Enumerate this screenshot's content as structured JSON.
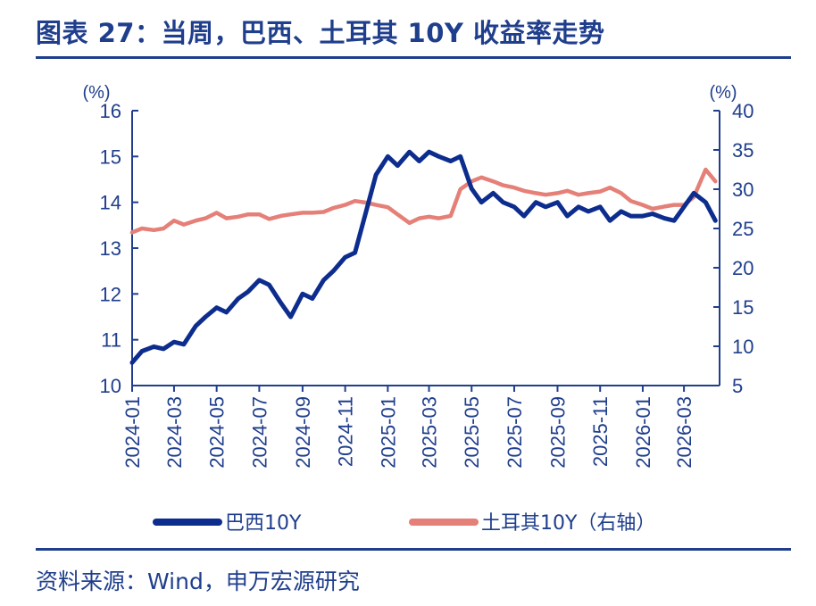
{
  "header": {
    "title": "图表 27：当周，巴西、土耳其 10Y 收益率走势"
  },
  "footer": {
    "source": "资料来源：Wind，申万宏源研究"
  },
  "colors": {
    "brand": "#1f3e8c",
    "brazil": "#0d2d8e",
    "turkey": "#e58078"
  },
  "chart_data": {
    "type": "line",
    "left_axis": {
      "unit": "(%)",
      "range": [
        10,
        16
      ],
      "ticks": [
        "10",
        "11",
        "12",
        "13",
        "14",
        "15",
        "16"
      ]
    },
    "right_axis": {
      "unit": "(%)",
      "range": [
        5,
        40
      ],
      "ticks": [
        "5",
        "10",
        "15",
        "20",
        "25",
        "30",
        "35",
        "40"
      ]
    },
    "x_axis": {
      "ticks": [
        "2024-01",
        "2024-03",
        "2024-05",
        "2024-07",
        "2024-09",
        "2024-11",
        "2025-01",
        "2025-03",
        "2025-05",
        "2025-07",
        "2025-09",
        "2025-11",
        "2026-01",
        "2026-03"
      ]
    },
    "legend_position": "bottom",
    "grid": false,
    "series": [
      {
        "name": "巴西10Y",
        "axis": "left",
        "color": "#0d2d8e",
        "x": [
          "2024-01-01",
          "2024-01-15",
          "2024-02-01",
          "2024-02-15",
          "2024-03-01",
          "2024-03-15",
          "2024-04-01",
          "2024-04-15",
          "2024-05-01",
          "2024-05-15",
          "2024-06-01",
          "2024-06-15",
          "2024-07-01",
          "2024-07-15",
          "2024-08-01",
          "2024-08-15",
          "2024-09-01",
          "2024-09-15",
          "2024-10-01",
          "2024-10-15",
          "2024-11-01",
          "2024-11-15",
          "2024-12-01",
          "2024-12-15",
          "2025-01-01",
          "2025-01-15",
          "2025-02-01",
          "2025-02-15",
          "2025-03-01",
          "2025-03-15",
          "2025-04-01",
          "2025-04-15",
          "2025-05-01",
          "2025-05-15",
          "2025-06-01",
          "2025-06-15",
          "2025-07-01",
          "2025-07-15",
          "2025-08-01",
          "2025-08-15",
          "2025-09-01",
          "2025-09-15",
          "2025-10-01",
          "2025-10-15",
          "2025-11-01",
          "2025-11-15",
          "2025-12-01",
          "2025-12-15",
          "2026-01-01",
          "2026-01-15",
          "2026-02-01",
          "2026-02-15",
          "2026-03-01",
          "2026-03-15",
          "2026-04-01",
          "2026-04-15"
        ],
        "values": [
          10.5,
          10.75,
          10.85,
          10.8,
          10.95,
          10.9,
          11.3,
          11.5,
          11.7,
          11.6,
          11.9,
          12.05,
          12.3,
          12.2,
          11.8,
          11.5,
          12.0,
          11.9,
          12.3,
          12.5,
          12.8,
          12.9,
          13.8,
          14.6,
          15.0,
          14.8,
          15.1,
          14.9,
          15.1,
          15.0,
          14.9,
          15.0,
          14.3,
          14.0,
          14.2,
          14.0,
          13.9,
          13.7,
          14.0,
          13.9,
          14.0,
          13.7,
          13.9,
          13.8,
          13.9,
          13.6,
          13.8,
          13.7,
          13.7,
          13.75,
          13.65,
          13.6,
          13.9,
          14.2,
          14.0,
          13.6
        ]
      },
      {
        "name": "土耳其10Y（右轴）",
        "axis": "right",
        "color": "#e58078",
        "x": [
          "2024-01-01",
          "2024-01-15",
          "2024-02-01",
          "2024-02-15",
          "2024-03-01",
          "2024-03-15",
          "2024-04-01",
          "2024-04-15",
          "2024-05-01",
          "2024-05-15",
          "2024-06-01",
          "2024-06-15",
          "2024-07-01",
          "2024-07-15",
          "2024-08-01",
          "2024-08-15",
          "2024-09-01",
          "2024-09-15",
          "2024-10-01",
          "2024-10-15",
          "2024-11-01",
          "2024-11-15",
          "2024-12-01",
          "2024-12-15",
          "2025-01-01",
          "2025-01-15",
          "2025-02-01",
          "2025-02-15",
          "2025-03-01",
          "2025-03-15",
          "2025-04-01",
          "2025-04-15",
          "2025-05-01",
          "2025-05-15",
          "2025-06-01",
          "2025-06-15",
          "2025-07-01",
          "2025-07-15",
          "2025-08-01",
          "2025-08-15",
          "2025-09-01",
          "2025-09-15",
          "2025-10-01",
          "2025-10-15",
          "2025-11-01",
          "2025-11-15",
          "2025-12-01",
          "2025-12-15",
          "2026-01-01",
          "2026-01-15",
          "2026-02-01",
          "2026-02-15",
          "2026-03-01",
          "2026-03-15",
          "2026-04-01",
          "2026-04-15"
        ],
        "values": [
          24.5,
          25.0,
          24.8,
          25.0,
          26.0,
          25.5,
          26.0,
          26.3,
          27.0,
          26.3,
          26.5,
          26.8,
          26.8,
          26.2,
          26.6,
          26.8,
          27.0,
          27.0,
          27.1,
          27.6,
          28.0,
          28.5,
          28.3,
          28.0,
          27.7,
          26.8,
          25.7,
          26.3,
          26.5,
          26.3,
          26.6,
          30.0,
          31.0,
          31.5,
          31.0,
          30.5,
          30.2,
          29.8,
          29.5,
          29.3,
          29.5,
          29.8,
          29.3,
          29.5,
          29.7,
          30.2,
          29.5,
          28.5,
          28.0,
          27.5,
          27.8,
          28.0,
          28.0,
          29.0,
          32.5,
          31.0
        ]
      }
    ]
  }
}
